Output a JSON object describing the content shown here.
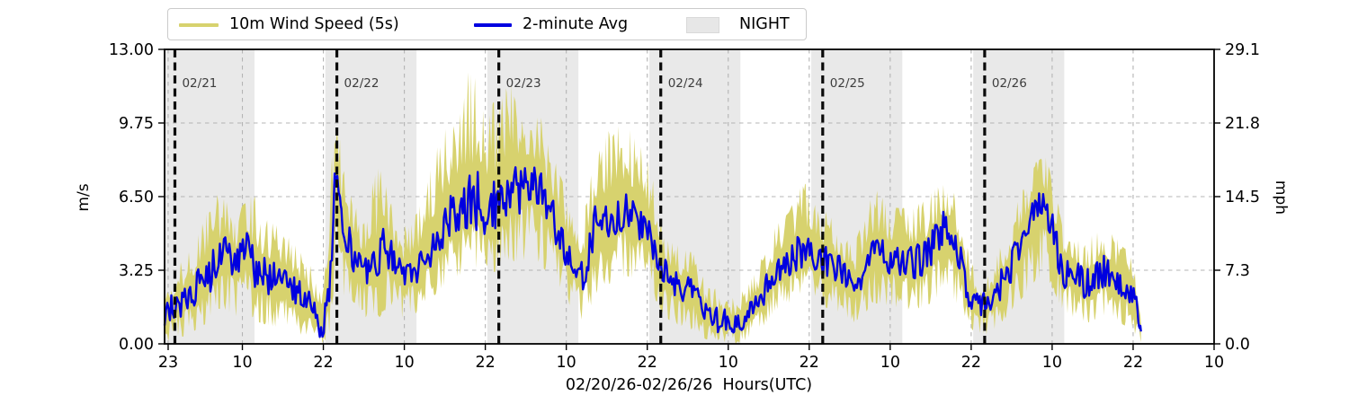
{
  "legend": {
    "items": [
      {
        "label": "10m Wind Speed (5s)",
        "swatch": "line",
        "color": "#d7d26e"
      },
      {
        "label": "2-minute Avg",
        "swatch": "line",
        "color": "#0000e0"
      },
      {
        "label": "NIGHT",
        "swatch": "patch",
        "color": "#e7e7e7"
      }
    ]
  },
  "axes": {
    "ylabel_left": "m/s",
    "ylabel_right": "mph",
    "xlabel": "02/20/26-02/26/26  Hours(UTC)"
  },
  "colors": {
    "wind_5s": "#d7d26e",
    "two_min_avg": "#0000e0",
    "night_band": "#e9e9e9",
    "grid_line": "#b4b4b4",
    "midnight_line": "#0a0a0a",
    "date_label": "#3d3d3d",
    "axis": "#000000"
  },
  "chart_data": {
    "type": "line",
    "title": "",
    "xlabel": "02/20/26-02/26/26  Hours(UTC)",
    "ylabel": "m/s",
    "ylabel_right": "mph",
    "ylim_left": [
      0,
      13
    ],
    "ylim_right": [
      0,
      29.1
    ],
    "xlim_hours": [
      22.47,
      178
    ],
    "grid": true,
    "legend_position": "top-left",
    "y_ticks_left_values": [
      13.0,
      9.75,
      6.5,
      3.25,
      0.0
    ],
    "y_ticks_left_labels": [
      "13.00",
      "9.75",
      "6.50",
      "3.25",
      "0.00"
    ],
    "y_ticks_right_labels": [
      "29.1",
      "21.8",
      "14.5",
      "7.3",
      "0.0"
    ],
    "x_tick_hours": [
      23,
      34,
      46,
      58,
      70,
      82,
      94,
      106,
      118,
      130,
      142,
      154,
      166,
      178
    ],
    "x_tick_labels": [
      "23",
      "10",
      "22",
      "10",
      "22",
      "10",
      "22",
      "10",
      "22",
      "10",
      "22",
      "10",
      "22",
      "10"
    ],
    "night_bands_hours": [
      [
        22.3,
        35.8
      ],
      [
        46.3,
        59.8
      ],
      [
        70.3,
        83.8
      ],
      [
        94.3,
        107.8
      ],
      [
        118.3,
        131.8
      ],
      [
        142.3,
        155.8
      ]
    ],
    "midnight_lines": [
      {
        "hour": 24,
        "label": "02/21"
      },
      {
        "hour": 48,
        "label": "02/22"
      },
      {
        "hour": 72,
        "label": "02/23"
      },
      {
        "hour": 96,
        "label": "02/24"
      },
      {
        "hour": 120,
        "label": "02/25"
      },
      {
        "hour": 144,
        "label": "02/26"
      }
    ],
    "series_meta": [
      {
        "name": "10m Wind Speed (5s)",
        "type": "noisy-envelope",
        "color": "#d7d26e"
      },
      {
        "name": "2-minute Avg",
        "type": "noisy-line",
        "color": "#0000e0"
      }
    ],
    "anchors_columns": [
      "hour_utc_since_0220",
      "avg_2min_ms",
      "gust_envelope_top_ms",
      "envelope_bottom_ms"
    ],
    "anchors": [
      [
        22.47,
        1.3,
        3.0,
        0.1
      ],
      [
        24,
        1.6,
        3.3,
        0.2
      ],
      [
        26,
        2.1,
        4.0,
        0.4
      ],
      [
        28,
        2.7,
        5.2,
        0.8
      ],
      [
        29.5,
        3.2,
        7.2,
        1.0
      ],
      [
        31.5,
        4.1,
        6.3,
        1.5
      ],
      [
        33,
        3.4,
        6.0,
        1.2
      ],
      [
        34.5,
        4.2,
        6.6,
        1.5
      ],
      [
        36,
        3.2,
        6.5,
        1.0
      ],
      [
        38,
        2.9,
        5.5,
        0.8
      ],
      [
        40,
        2.7,
        5.0,
        0.7
      ],
      [
        42,
        2.3,
        4.3,
        0.5
      ],
      [
        44,
        1.7,
        3.5,
        0.2
      ],
      [
        45.8,
        0.7,
        2.2,
        0.0
      ],
      [
        46.8,
        2.2,
        6.0,
        0.3
      ],
      [
        47.9,
        7.7,
        11.3,
        2.5
      ],
      [
        48.6,
        5.2,
        8.5,
        2.0
      ],
      [
        50,
        4.2,
        7.0,
        1.6
      ],
      [
        52,
        3.2,
        5.8,
        1.2
      ],
      [
        54,
        3.4,
        8.0,
        1.0
      ],
      [
        55,
        4.6,
        7.2,
        1.5
      ],
      [
        56.5,
        3.5,
        5.8,
        1.3
      ],
      [
        58,
        3.0,
        5.2,
        1.1
      ],
      [
        60,
        3.4,
        5.8,
        1.4
      ],
      [
        62,
        4.4,
        7.8,
        2.0
      ],
      [
        64,
        5.2,
        9.8,
        2.6
      ],
      [
        66,
        5.8,
        11.5,
        3.0
      ],
      [
        67.5,
        6.3,
        12.0,
        3.2
      ],
      [
        69,
        6.3,
        11.6,
        3.2
      ],
      [
        70.5,
        5.9,
        10.8,
        3.0
      ],
      [
        72,
        6.3,
        10.5,
        3.3
      ],
      [
        73.5,
        7.0,
        11.6,
        3.7
      ],
      [
        75,
        6.8,
        11.0,
        3.6
      ],
      [
        76.5,
        7.3,
        10.8,
        3.8
      ],
      [
        78,
        6.9,
        10.2,
        3.6
      ],
      [
        79.5,
        6.0,
        9.0,
        3.0
      ],
      [
        81,
        4.8,
        7.5,
        2.2
      ],
      [
        83,
        3.6,
        6.0,
        1.5
      ],
      [
        84.3,
        2.9,
        5.0,
        1.0
      ],
      [
        85.3,
        3.8,
        7.0,
        1.4
      ],
      [
        86.3,
        5.3,
        8.2,
        2.2
      ],
      [
        88,
        5.6,
        9.2,
        2.6
      ],
      [
        89.5,
        5.8,
        10.3,
        2.8
      ],
      [
        91,
        6.0,
        10.0,
        3.0
      ],
      [
        92.5,
        5.6,
        9.0,
        2.8
      ],
      [
        94,
        5.2,
        8.2,
        2.5
      ],
      [
        95.5,
        4.0,
        6.5,
        1.8
      ],
      [
        97,
        2.9,
        4.8,
        1.0
      ],
      [
        99,
        2.4,
        4.2,
        0.8
      ],
      [
        101,
        2.2,
        4.0,
        0.6
      ],
      [
        102.7,
        1.2,
        2.8,
        0.2
      ],
      [
        105,
        1.0,
        2.2,
        0.1
      ],
      [
        107,
        0.9,
        2.0,
        0.0
      ],
      [
        109,
        1.3,
        2.6,
        0.2
      ],
      [
        111,
        2.2,
        3.8,
        0.7
      ],
      [
        113,
        3.3,
        5.2,
        1.5
      ],
      [
        115,
        3.7,
        5.8,
        1.8
      ],
      [
        117,
        4.2,
        7.2,
        2.0
      ],
      [
        119,
        4.0,
        6.5,
        1.9
      ],
      [
        121,
        3.5,
        5.6,
        1.5
      ],
      [
        122.5,
        3.3,
        5.4,
        1.4
      ],
      [
        124.5,
        2.4,
        4.2,
        0.9
      ],
      [
        126,
        3.2,
        5.5,
        1.3
      ],
      [
        127.7,
        4.0,
        6.9,
        1.8
      ],
      [
        129.5,
        3.8,
        6.2,
        1.7
      ],
      [
        131,
        3.7,
        6.0,
        1.6
      ],
      [
        133,
        3.6,
        6.0,
        1.5
      ],
      [
        135,
        3.8,
        6.3,
        1.6
      ],
      [
        136.5,
        4.4,
        6.8,
        1.9
      ],
      [
        138,
        5.2,
        7.1,
        2.4
      ],
      [
        139.7,
        4.4,
        6.6,
        1.9
      ],
      [
        141.5,
        2.4,
        4.2,
        0.8
      ],
      [
        143,
        1.7,
        3.0,
        0.4
      ],
      [
        144.5,
        1.7,
        3.0,
        0.4
      ],
      [
        146,
        2.4,
        4.0,
        0.8
      ],
      [
        148,
        3.4,
        5.7,
        1.4
      ],
      [
        150,
        4.8,
        7.0,
        2.2
      ],
      [
        151.5,
        5.9,
        8.0,
        2.8
      ],
      [
        153,
        6.1,
        8.3,
        3.0
      ],
      [
        154.5,
        4.6,
        6.8,
        2.2
      ],
      [
        155.5,
        3.2,
        5.2,
        1.3
      ],
      [
        157,
        3.1,
        5.1,
        1.2
      ],
      [
        159,
        2.6,
        4.4,
        0.9
      ],
      [
        161.5,
        3.2,
        5.5,
        1.2
      ],
      [
        163.5,
        2.9,
        4.7,
        1.0
      ],
      [
        165.5,
        2.4,
        4.0,
        0.7
      ],
      [
        166.6,
        1.6,
        2.8,
        0.3
      ],
      [
        167.2,
        0.4,
        1.2,
        0.0
      ]
    ],
    "data_end_hour": 167.2
  }
}
